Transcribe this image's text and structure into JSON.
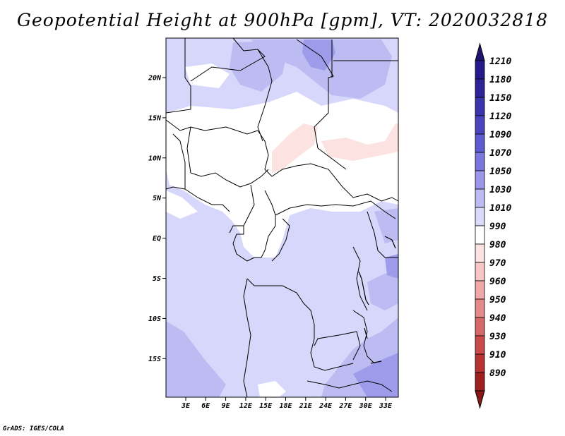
{
  "title": "Geopotential Height at 900hPa [gpm], VT: 2020032818",
  "credit": "GrADS: IGES/COLA",
  "lat_labels": [
    "20N",
    "15N",
    "10N",
    "5N",
    "EQ",
    "5S",
    "10S",
    "15S"
  ],
  "lon_labels": [
    "3E",
    "6E",
    "9E",
    "12E",
    "15E",
    "18E",
    "21E",
    "24E",
    "27E",
    "30E",
    "33E"
  ],
  "colorbar": [
    {
      "label": "1210",
      "color": "#241a8c"
    },
    {
      "label": "1180",
      "color": "#2c2498"
    },
    {
      "label": "1150",
      "color": "#3a34ad"
    },
    {
      "label": "1120",
      "color": "#4a45be"
    },
    {
      "label": "1090",
      "color": "#5e5ad0"
    },
    {
      "label": "1070",
      "color": "#7a76de"
    },
    {
      "label": "1050",
      "color": "#9a97ea"
    },
    {
      "label": "1030",
      "color": "#bcbcf2"
    },
    {
      "label": "1010",
      "color": "#d9dafa"
    },
    {
      "label": "990",
      "color": "#ffffff"
    },
    {
      "label": "980",
      "color": "#fde2e2"
    },
    {
      "label": "970",
      "color": "#f8c6c6"
    },
    {
      "label": "960",
      "color": "#f0a8a8"
    },
    {
      "label": "950",
      "color": "#e58a8a"
    },
    {
      "label": "940",
      "color": "#d86868"
    },
    {
      "label": "930",
      "color": "#cc4a4a"
    },
    {
      "label": "910",
      "color": "#b83232"
    },
    {
      "label": "890",
      "color": "#a01f1f"
    }
  ],
  "colorbar_top_color": "#1f1470",
  "colorbar_bottom_color": "#8a1818",
  "fill_colors": {
    "base": "#d6d7fa",
    "darker": "#bcbcf2",
    "darkest": "#9e9beb",
    "white": "#ffffff",
    "pink": "#fde2e2"
  }
}
